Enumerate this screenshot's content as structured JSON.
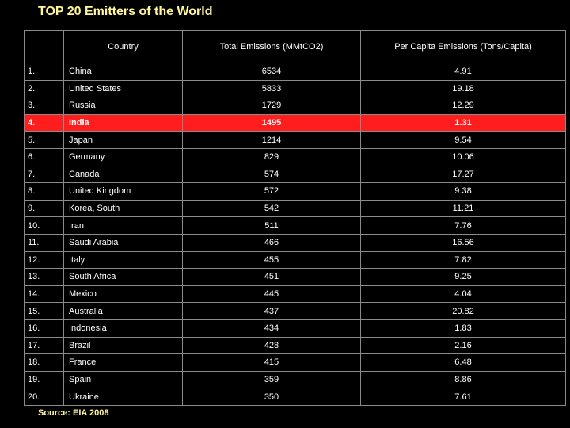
{
  "title": "TOP 20 Emitters of the World",
  "source": "Source: EIA 2008",
  "colors": {
    "background": "#000000",
    "text": "#ffffff",
    "title": "#fff59a",
    "highlight_row": "#ff1d1d",
    "grid": "#8a8a8a"
  },
  "chart_data": {
    "type": "table",
    "title": "TOP 20 Emitters of the World",
    "columns": [
      "",
      "Country",
      "Total Emissions (MMtCO2)",
      "Per Capita Emissions (Tons/Capita)"
    ],
    "rows": [
      {
        "rank": "1.",
        "country": "China",
        "total": "6534",
        "per_capita": "4.91"
      },
      {
        "rank": "2.",
        "country": "United States",
        "total": "5833",
        "per_capita": "19.18"
      },
      {
        "rank": "3.",
        "country": "Russia",
        "total": "1729",
        "per_capita": "12.29"
      },
      {
        "rank": "4.",
        "country": "India",
        "total": "1495",
        "per_capita": "1.31"
      },
      {
        "rank": "5.",
        "country": "Japan",
        "total": "1214",
        "per_capita": "9.54"
      },
      {
        "rank": "6.",
        "country": "Germany",
        "total": "829",
        "per_capita": "10.06"
      },
      {
        "rank": "7.",
        "country": "Canada",
        "total": "574",
        "per_capita": "17.27"
      },
      {
        "rank": "8.",
        "country": "United Kingdom",
        "total": "572",
        "per_capita": "9.38"
      },
      {
        "rank": "9.",
        "country": "Korea, South",
        "total": "542",
        "per_capita": "11.21"
      },
      {
        "rank": "10.",
        "country": "Iran",
        "total": "511",
        "per_capita": "7.76"
      },
      {
        "rank": "11.",
        "country": "Saudi Arabia",
        "total": "466",
        "per_capita": "16.56"
      },
      {
        "rank": "12.",
        "country": "Italy",
        "total": "455",
        "per_capita": "7.82"
      },
      {
        "rank": "13.",
        "country": "South Africa",
        "total": "451",
        "per_capita": "9.25"
      },
      {
        "rank": "14.",
        "country": "Mexico",
        "total": "445",
        "per_capita": "4.04"
      },
      {
        "rank": "15.",
        "country": "Australia",
        "total": "437",
        "per_capita": "20.82"
      },
      {
        "rank": "16.",
        "country": "Indonesia",
        "total": "434",
        "per_capita": "1.83"
      },
      {
        "rank": "17.",
        "country": "Brazil",
        "total": "428",
        "per_capita": "2.16"
      },
      {
        "rank": "18.",
        "country": "France",
        "total": "415",
        "per_capita": "6.48"
      },
      {
        "rank": "19.",
        "country": "Spain",
        "total": "359",
        "per_capita": "8.86"
      },
      {
        "rank": "20.",
        "country": "Ukraine",
        "total": "350",
        "per_capita": "7.61"
      }
    ],
    "highlighted_rank": "4."
  }
}
